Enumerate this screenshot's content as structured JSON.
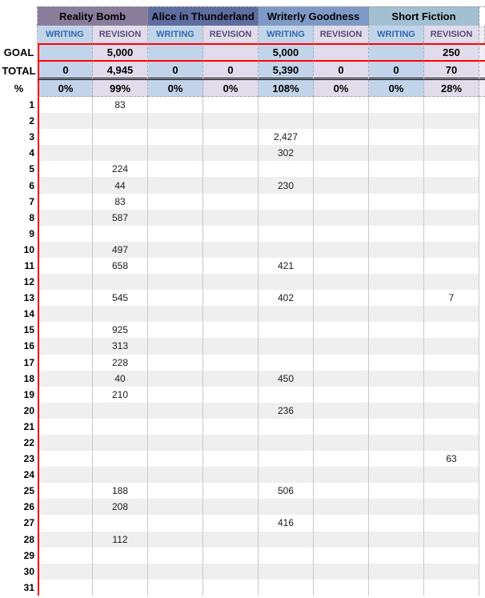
{
  "colors": {
    "red_accent": "#ff0000",
    "writing_bg": "#c2d4ea",
    "writing_text": "#2e69ae",
    "revision_bg": "#e1dcec",
    "revision_text": "#5a4879",
    "band_gray": "#efefef",
    "gridline": "#c9c9c9"
  },
  "sheet": {
    "row_labels": {
      "goal": "GOAL",
      "total": "TOTAL",
      "percent": "%"
    },
    "column_types": {
      "writing": "WRITING",
      "revision": "REVISION"
    },
    "projects": [
      {
        "name": "Reality Bomb",
        "header_color": "#8a7d9b"
      },
      {
        "name": "Alice in Thunderland",
        "header_color": "#5e6da0"
      },
      {
        "name": "Writerly Goodness",
        "header_color": "#7f99c6"
      },
      {
        "name": "Short Fiction",
        "header_color": "#a3c0d3"
      }
    ],
    "goal_values": [
      "",
      "5,000",
      "",
      "",
      "5,000",
      "",
      "",
      "250"
    ],
    "total_values": [
      "0",
      "4,945",
      "0",
      "0",
      "5,390",
      "0",
      "0",
      "70"
    ],
    "percent_values": [
      "0%",
      "99%",
      "0%",
      "0%",
      "108%",
      "0%",
      "0%",
      "28%"
    ],
    "days": [
      {
        "day": "1",
        "values": [
          "",
          "83",
          "",
          "",
          "",
          "",
          "",
          ""
        ]
      },
      {
        "day": "2",
        "values": [
          "",
          "",
          "",
          "",
          "",
          "",
          "",
          ""
        ]
      },
      {
        "day": "3",
        "values": [
          "",
          "",
          "",
          "",
          "2,427",
          "",
          "",
          ""
        ]
      },
      {
        "day": "4",
        "values": [
          "",
          "",
          "",
          "",
          "302",
          "",
          "",
          ""
        ]
      },
      {
        "day": "5",
        "values": [
          "",
          "224",
          "",
          "",
          "",
          "",
          "",
          ""
        ]
      },
      {
        "day": "6",
        "values": [
          "",
          "44",
          "",
          "",
          "230",
          "",
          "",
          ""
        ]
      },
      {
        "day": "7",
        "values": [
          "",
          "83",
          "",
          "",
          "",
          "",
          "",
          ""
        ]
      },
      {
        "day": "8",
        "values": [
          "",
          "587",
          "",
          "",
          "",
          "",
          "",
          ""
        ]
      },
      {
        "day": "9",
        "values": [
          "",
          "",
          "",
          "",
          "",
          "",
          "",
          ""
        ]
      },
      {
        "day": "10",
        "values": [
          "",
          "497",
          "",
          "",
          "",
          "",
          "",
          ""
        ]
      },
      {
        "day": "11",
        "values": [
          "",
          "658",
          "",
          "",
          "421",
          "",
          "",
          ""
        ]
      },
      {
        "day": "12",
        "values": [
          "",
          "",
          "",
          "",
          "",
          "",
          "",
          ""
        ]
      },
      {
        "day": "13",
        "values": [
          "",
          "545",
          "",
          "",
          "402",
          "",
          "",
          "7"
        ]
      },
      {
        "day": "14",
        "values": [
          "",
          "",
          "",
          "",
          "",
          "",
          "",
          ""
        ]
      },
      {
        "day": "15",
        "values": [
          "",
          "925",
          "",
          "",
          "",
          "",
          "",
          ""
        ]
      },
      {
        "day": "16",
        "values": [
          "",
          "313",
          "",
          "",
          "",
          "",
          "",
          ""
        ]
      },
      {
        "day": "17",
        "values": [
          "",
          "228",
          "",
          "",
          "",
          "",
          "",
          ""
        ]
      },
      {
        "day": "18",
        "values": [
          "",
          "40",
          "",
          "",
          "450",
          "",
          "",
          ""
        ]
      },
      {
        "day": "19",
        "values": [
          "",
          "210",
          "",
          "",
          "",
          "",
          "",
          ""
        ]
      },
      {
        "day": "20",
        "values": [
          "",
          "",
          "",
          "",
          "236",
          "",
          "",
          ""
        ]
      },
      {
        "day": "21",
        "values": [
          "",
          "",
          "",
          "",
          "",
          "",
          "",
          ""
        ]
      },
      {
        "day": "22",
        "values": [
          "",
          "",
          "",
          "",
          "",
          "",
          "",
          ""
        ]
      },
      {
        "day": "23",
        "values": [
          "",
          "",
          "",
          "",
          "",
          "",
          "",
          "63"
        ]
      },
      {
        "day": "24",
        "values": [
          "",
          "",
          "",
          "",
          "",
          "",
          "",
          ""
        ]
      },
      {
        "day": "25",
        "values": [
          "",
          "188",
          "",
          "",
          "506",
          "",
          "",
          ""
        ]
      },
      {
        "day": "26",
        "values": [
          "",
          "208",
          "",
          "",
          "",
          "",
          "",
          ""
        ]
      },
      {
        "day": "27",
        "values": [
          "",
          "",
          "",
          "",
          "416",
          "",
          "",
          ""
        ]
      },
      {
        "day": "28",
        "values": [
          "",
          "112",
          "",
          "",
          "",
          "",
          "",
          ""
        ]
      },
      {
        "day": "29",
        "values": [
          "",
          "",
          "",
          "",
          "",
          "",
          "",
          ""
        ]
      },
      {
        "day": "30",
        "values": [
          "",
          "",
          "",
          "",
          "",
          "",
          "",
          ""
        ]
      },
      {
        "day": "31",
        "values": [
          "",
          "",
          "",
          "",
          "",
          "",
          "",
          ""
        ]
      }
    ]
  }
}
